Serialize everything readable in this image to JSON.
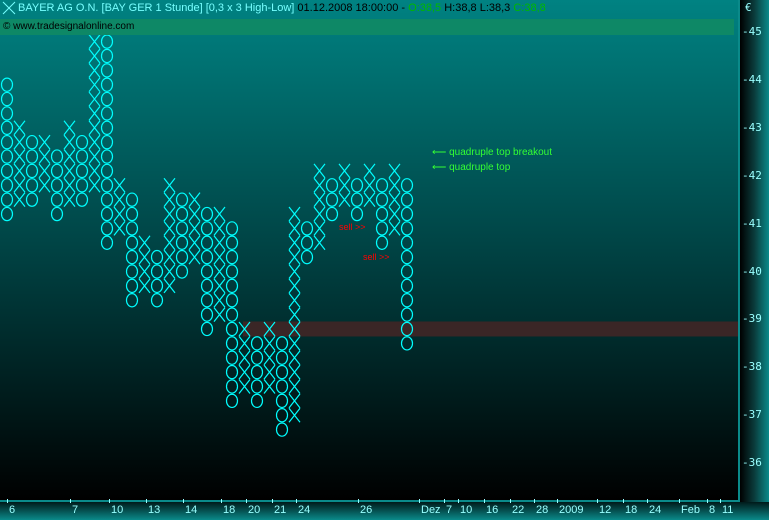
{
  "header": {
    "title": "BAYER AG O.N. [BAY GER  1 Stunde] [0,3 x 3 High-Low]",
    "datetime": "01.12.2008 18:00:00 -",
    "open": "O:38,5",
    "high_low": "H:38,8 L:38,3",
    "close": "C:38,8",
    "copyright": "© www.tradesignalonline.com"
  },
  "colors": {
    "symbol": "#00ffff",
    "annotation": "#33ff33",
    "sell": "#ff0000",
    "support_band": "#3a2626"
  },
  "annotations": {
    "breakout": "⟵ quadruple top breakout",
    "top": "⟵ quadruple top",
    "sell1": "sell >>",
    "sell2": "sell >>"
  },
  "chart_data": {
    "type": "point-and-figure",
    "title": "BAYER AG O.N. [BAY GER  1 Stunde] [0,3 x 3 High-Low]",
    "box_size": 0.3,
    "reversal": 3,
    "ylabel": "€",
    "ylim": [
      35.6,
      45.6
    ],
    "y_ticks": [
      "45",
      "44",
      "43",
      "42",
      "41",
      "40",
      "39",
      "38",
      "37",
      "36"
    ],
    "x_ticks": [
      "6",
      "7",
      "10",
      "13",
      "14",
      "18",
      "20",
      "21",
      "24",
      "26",
      "Dez",
      "7",
      "10",
      "16",
      "22",
      "28",
      "2009",
      "12",
      "18",
      "24",
      "Feb",
      "8",
      "11"
    ],
    "support_level": 38.8,
    "columns": [
      {
        "t": "O",
        "lo": 41.2,
        "hi": 43.9
      },
      {
        "t": "X",
        "lo": 41.5,
        "hi": 43.0
      },
      {
        "t": "O",
        "lo": 41.5,
        "hi": 42.7
      },
      {
        "t": "X",
        "lo": 41.8,
        "hi": 42.7
      },
      {
        "t": "O",
        "lo": 41.2,
        "hi": 42.4
      },
      {
        "t": "X",
        "lo": 41.5,
        "hi": 43.0
      },
      {
        "t": "O",
        "lo": 41.5,
        "hi": 42.7
      },
      {
        "t": "X",
        "lo": 41.8,
        "hi": 45.1
      },
      {
        "t": "O",
        "lo": 40.6,
        "hi": 44.8
      },
      {
        "t": "X",
        "lo": 40.9,
        "hi": 41.8
      },
      {
        "t": "O",
        "lo": 39.4,
        "hi": 41.5
      },
      {
        "t": "X",
        "lo": 39.7,
        "hi": 40.6
      },
      {
        "t": "O",
        "lo": 39.4,
        "hi": 40.3
      },
      {
        "t": "X",
        "lo": 39.7,
        "hi": 41.8
      },
      {
        "t": "O",
        "lo": 40.0,
        "hi": 41.5
      },
      {
        "t": "X",
        "lo": 40.3,
        "hi": 41.5
      },
      {
        "t": "O",
        "lo": 38.8,
        "hi": 41.2
      },
      {
        "t": "X",
        "lo": 39.1,
        "hi": 41.2
      },
      {
        "t": "O",
        "lo": 37.3,
        "hi": 40.9
      },
      {
        "t": "X",
        "lo": 37.6,
        "hi": 38.8
      },
      {
        "t": "O",
        "lo": 37.3,
        "hi": 38.5
      },
      {
        "t": "X",
        "lo": 37.6,
        "hi": 38.8
      },
      {
        "t": "O",
        "lo": 36.7,
        "hi": 38.5
      },
      {
        "t": "X",
        "lo": 37.0,
        "hi": 41.2
      },
      {
        "t": "O",
        "lo": 40.3,
        "hi": 40.9
      },
      {
        "t": "X",
        "lo": 40.6,
        "hi": 42.1
      },
      {
        "t": "O",
        "lo": 41.2,
        "hi": 41.8
      },
      {
        "t": "X",
        "lo": 41.5,
        "hi": 42.1
      },
      {
        "t": "O",
        "lo": 41.2,
        "hi": 41.8
      },
      {
        "t": "X",
        "lo": 41.5,
        "hi": 42.1
      },
      {
        "t": "O",
        "lo": 40.6,
        "hi": 41.8
      },
      {
        "t": "X",
        "lo": 40.9,
        "hi": 42.1
      },
      {
        "t": "O",
        "lo": 38.5,
        "hi": 41.8
      }
    ]
  }
}
